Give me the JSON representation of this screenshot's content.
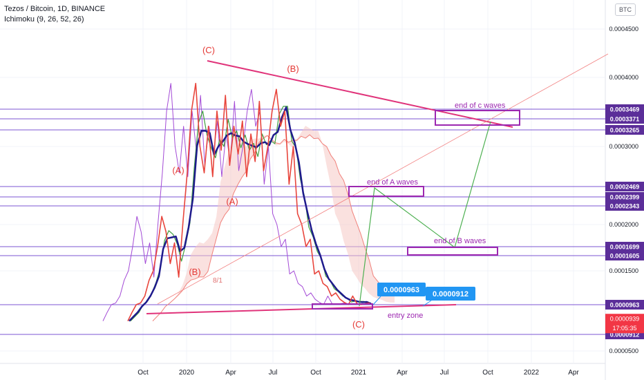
{
  "header": {
    "title": "Tezos / Bitcoin, 1D, BINANCE",
    "indicator": "Ichimoku (9, 26, 52, 26)",
    "currency_button": "BTC"
  },
  "colors": {
    "candle_line": "#e8453c",
    "lagging": "#a34ad6",
    "base": "#1e1a8c",
    "conversion": "#3f9e3f",
    "span_b": "#f0807a",
    "cloud": "#f6c9c4",
    "level_line": "#7b55d3",
    "level_label_bg": "#5b2e99",
    "trend": "#e0337a",
    "projection": "#4caf50",
    "box": "#9c27b0",
    "wave_label": "#e53935",
    "annot_text": "#9c27b0",
    "callout": "#2196f3",
    "price_tag": "#f23645"
  },
  "chart_data": {
    "type": "line",
    "title": "Tezos / Bitcoin, 1D, BINANCE",
    "indicator": "Ichimoku (9, 26, 52, 26)",
    "x_ticks": [
      "Oct",
      "2020",
      "Apr",
      "Jul",
      "Oct",
      "2021",
      "Apr",
      "Jul",
      "Oct",
      "2022",
      "Apr"
    ],
    "y_ticks": [
      "0.0004500",
      "0.0004000",
      "0.0003000",
      "0.0002000",
      "0.0001500",
      "0.0000500"
    ],
    "grid": true,
    "price_series": {
      "x": [
        0,
        3,
        6,
        9,
        12,
        15,
        18,
        21,
        24,
        27,
        30,
        33,
        36,
        39,
        42,
        45,
        48,
        51,
        54,
        57,
        60,
        63,
        66,
        69,
        72,
        75,
        78,
        81,
        84,
        87,
        90,
        93,
        96,
        99,
        102,
        105,
        108,
        111,
        114,
        117,
        120,
        123,
        126,
        129,
        132,
        135,
        138,
        141,
        144,
        147,
        150,
        153,
        156,
        159,
        162,
        165,
        168,
        171
      ],
      "values": [
        9.35e-05,
        9.5e-05,
        9.65e-05,
        9.9e-05,
        0.00011,
        0.000135,
        0.00015,
        0.00017,
        0.000215,
        0.00019,
        0.000155,
        0.000175,
        0.00014,
        0.000205,
        0.000265,
        0.000345,
        0.00039,
        0.0003,
        0.000265,
        0.00033,
        0.00026,
        0.000345,
        0.000295,
        0.00037,
        0.000275,
        0.00033,
        0.00029,
        0.000335,
        0.00026,
        0.00032,
        0.00028,
        0.00036,
        0.000268,
        0.0003,
        0.000345,
        0.00038,
        0.00033,
        0.000345,
        0.00025,
        0.0003,
        0.00022,
        0.0002,
        0.00017,
        0.00018,
        0.000145,
        0.00015,
        0.00013,
        0.000125,
        0.00011,
        0.000115,
        0.000105,
        0.0001,
        9.65e-05,
        0.00011,
        9.8e-05,
        9.65e-05,
        9.8e-05,
        9.9e-05
      ]
    },
    "price_levels": [
      {
        "label": "0.0003469",
        "value": 0.0003469
      },
      {
        "label": "0.0003371",
        "value": 0.0003371
      },
      {
        "label": "0.0003265",
        "value": 0.0003265
      },
      {
        "label": "0.0002469",
        "value": 0.0002469
      },
      {
        "label": "0.0002399",
        "value": 0.0002399
      },
      {
        "label": "0.0002343",
        "value": 0.0002343
      },
      {
        "label": "0.0001699",
        "value": 0.0001699
      },
      {
        "label": "0.0001605",
        "value": 0.0001605
      },
      {
        "label": "0.0000963",
        "value": 9.63e-05
      },
      {
        "label": "0.0000912",
        "value": 9.12e-05
      }
    ],
    "current_price": {
      "label": "0.0000939",
      "value": 9.39e-05,
      "countdown": "17:05:35"
    },
    "wave_labels": [
      {
        "text": "(C)",
        "x": 2,
        "value": 0.000414
      },
      {
        "text": "(B)",
        "x": 2,
        "value": 0.000385
      },
      {
        "text": "(A)",
        "x": 2,
        "value": 0.000253
      },
      {
        "text": "(A)",
        "x": 2,
        "value": 0.000214
      },
      {
        "text": "(B)",
        "x": 2,
        "value": 0.000134
      },
      {
        "text": "(C)",
        "x": 2,
        "value": 7.6e-05
      }
    ],
    "annotations": [
      {
        "text": "end of c waves",
        "value": 0.000343
      },
      {
        "text": "end of A waves",
        "value": 0.000238
      },
      {
        "text": "end of B  waves",
        "value": 0.000166
      },
      {
        "text": "entry zone",
        "value": 8.8e-05
      },
      {
        "text": "8/1",
        "value": 0.00012
      }
    ],
    "callouts": [
      {
        "label": "0.0000963",
        "value": 9.63e-05
      },
      {
        "label": "0.0000912",
        "value": 9.12e-05
      }
    ]
  }
}
